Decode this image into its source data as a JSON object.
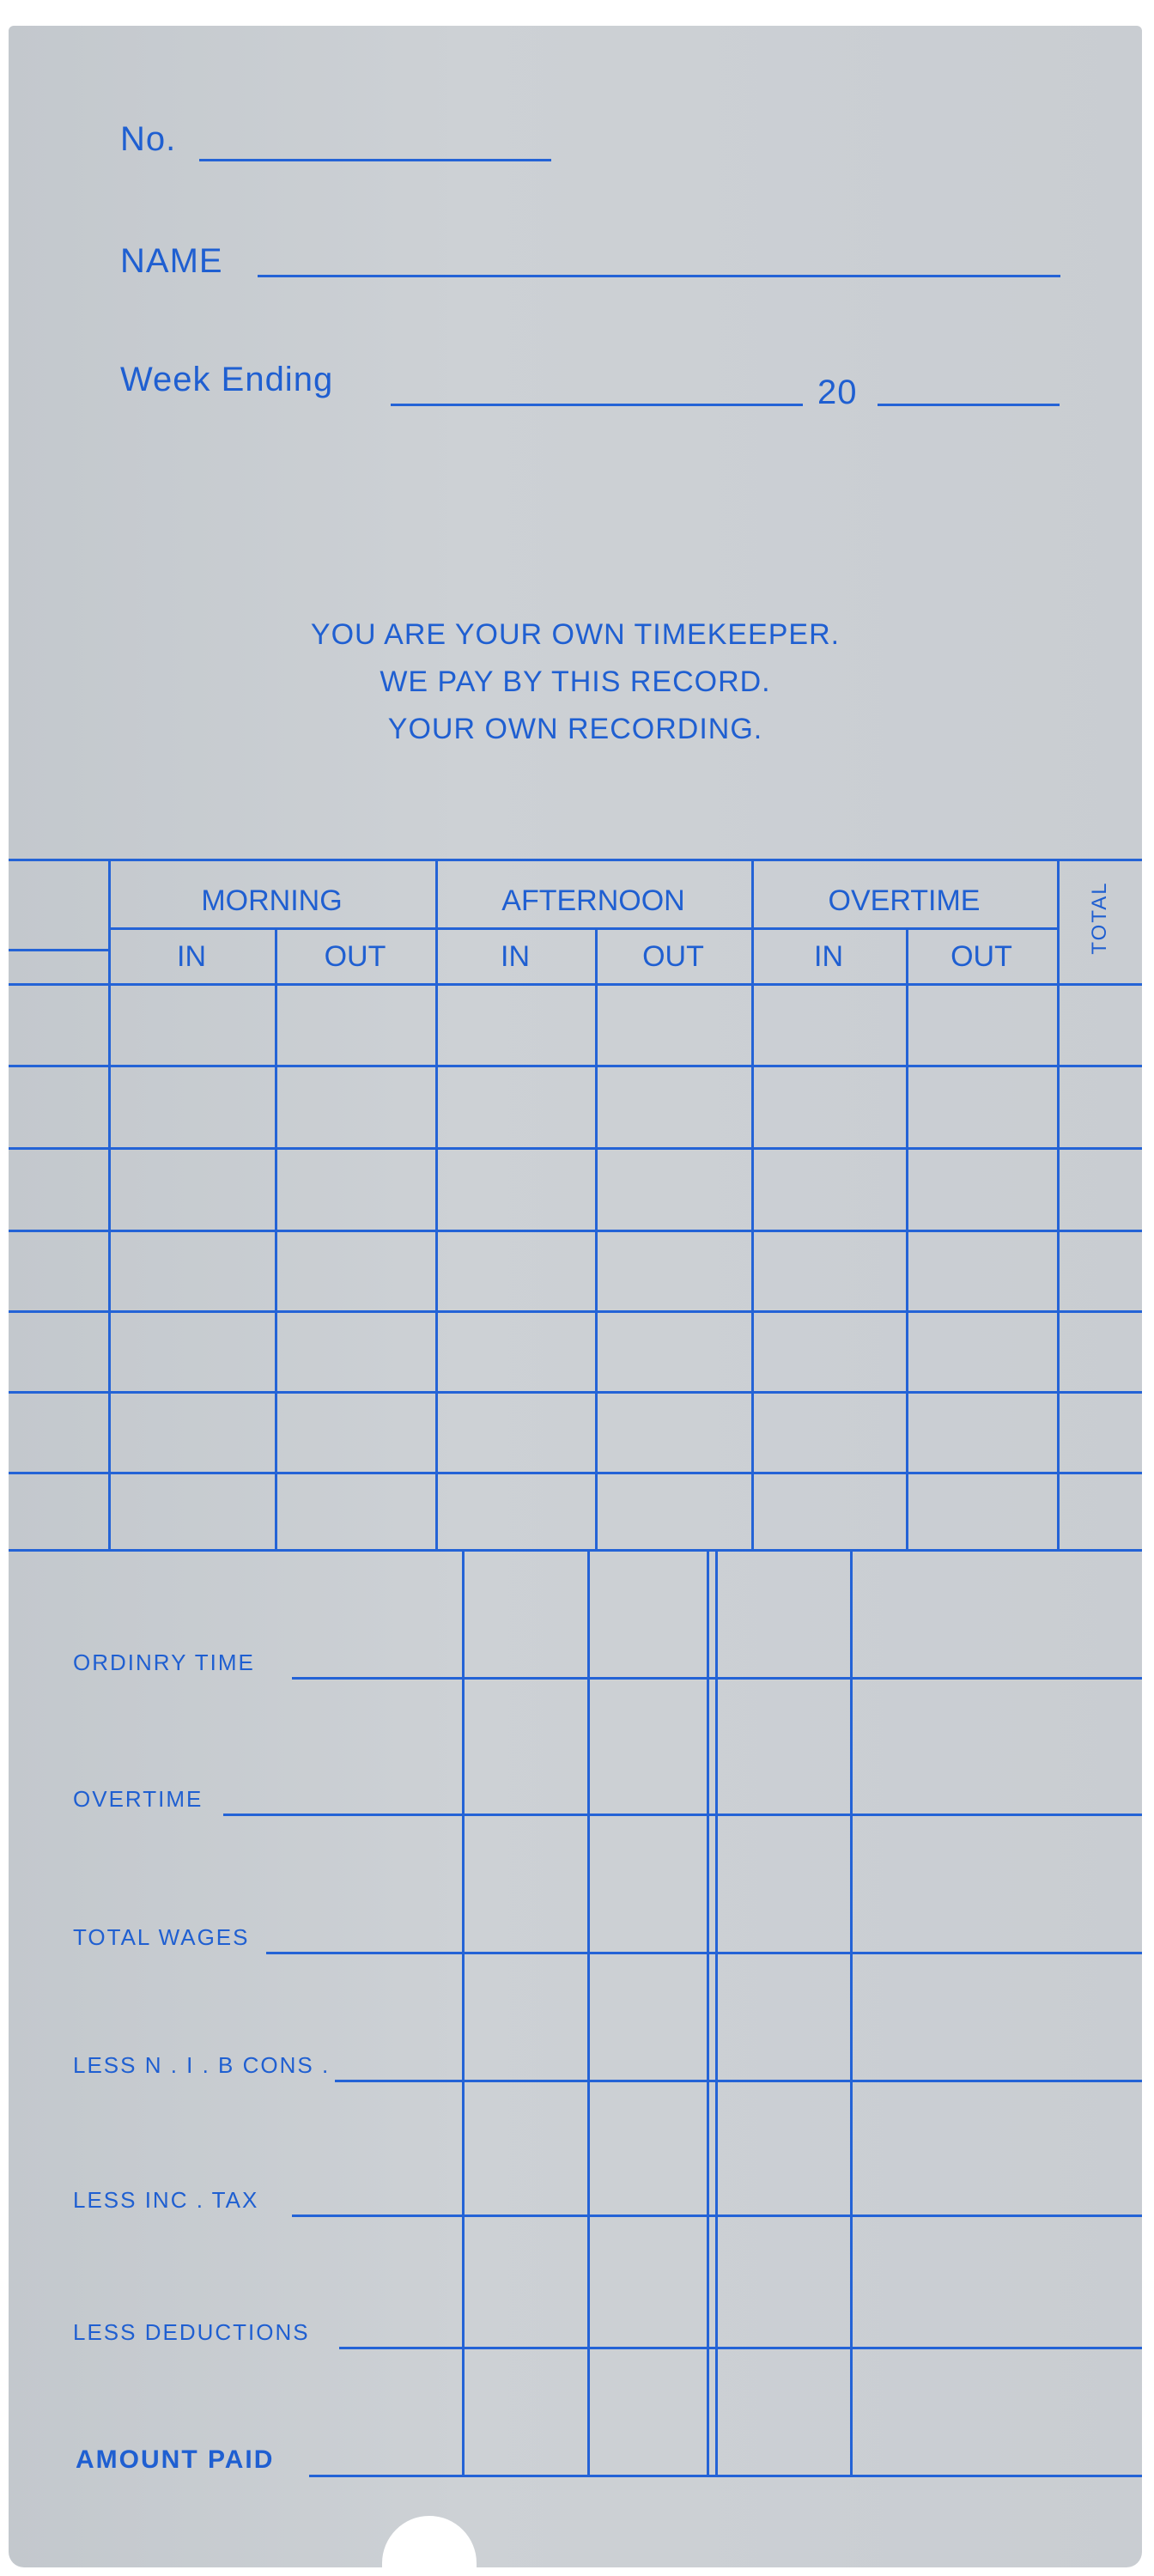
{
  "header": {
    "number_label": "No.",
    "name_label": "NAME",
    "week_ending_label": "Week Ending",
    "year_prefix": "20"
  },
  "message": [
    "YOU ARE YOUR OWN TIMEKEEPER.",
    "WE PAY BY THIS RECORD.",
    "YOUR OWN RECORDING."
  ],
  "time_table": {
    "groups": [
      "MORNING",
      "AFTERNOON",
      "OVERTIME"
    ],
    "sub_in": "IN",
    "sub_out": "OUT",
    "total": "TOTAL"
  },
  "wages": {
    "rows": [
      "ORDINRY  TIME",
      "OVERTIME",
      "TOTAL WAGES",
      "LESS  N . I . B  CONS .",
      "LESS  INC .  TAX",
      "LESS  DEDUCTIONS"
    ],
    "amount_paid": "AMOUNT PAID"
  },
  "colors": {
    "ink": "#2463d6",
    "card": "#c9cdd2"
  }
}
